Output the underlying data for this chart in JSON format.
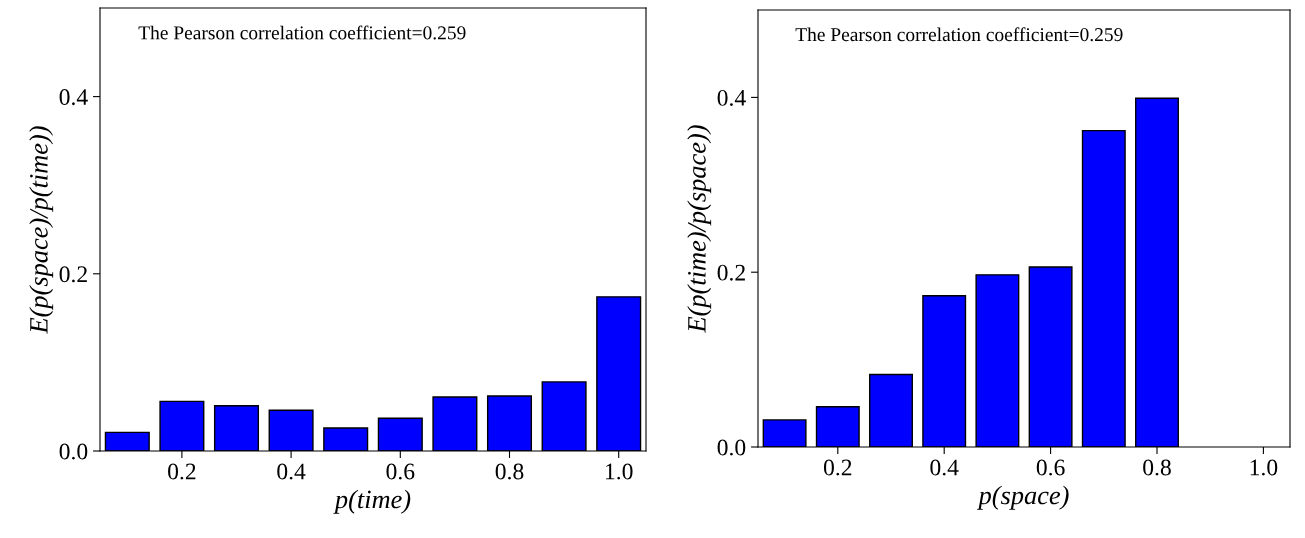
{
  "chart_data": [
    {
      "type": "bar",
      "xlabel": "p(time)",
      "ylabel": "E(p(space)/p(time))",
      "annotations": [
        "The Pearson correlation coefficient=0.259"
      ],
      "x": [
        0.1,
        0.2,
        0.3,
        0.4,
        0.5,
        0.6,
        0.7,
        0.8,
        0.9,
        1.0
      ],
      "values": [
        0.021,
        0.056,
        0.051,
        0.046,
        0.026,
        0.037,
        0.061,
        0.062,
        0.078,
        0.174
      ],
      "color": "#0000ff",
      "xlim": [
        0.05,
        1.05
      ],
      "xticks": [
        {
          "value": 0.2,
          "label": "0.2"
        },
        {
          "value": 0.4,
          "label": "0.4"
        },
        {
          "value": 0.6,
          "label": "0.6"
        },
        {
          "value": 0.8,
          "label": "0.8"
        },
        {
          "value": 1.0,
          "label": "1.0"
        }
      ],
      "ylim": [
        0,
        0.5
      ],
      "yticks": [
        {
          "value": 0,
          "label": "0.0"
        },
        {
          "value": 0.2,
          "label": "0.2"
        },
        {
          "value": 0.4,
          "label": "0.4"
        }
      ],
      "grid": false,
      "legend": false
    },
    {
      "type": "bar",
      "xlabel": "p(space)",
      "ylabel": "E(p(time)/p(space))",
      "annotations": [
        "The Pearson correlation coefficient=0.259"
      ],
      "x": [
        0.1,
        0.2,
        0.3,
        0.4,
        0.5,
        0.6,
        0.7,
        0.8
      ],
      "values": [
        0.031,
        0.046,
        0.083,
        0.173,
        0.197,
        0.206,
        0.362,
        0.399
      ],
      "color": "#0000ff",
      "xlim": [
        0.05,
        1.05
      ],
      "xticks": [
        {
          "value": 0.2,
          "label": "0.2"
        },
        {
          "value": 0.4,
          "label": "0.4"
        },
        {
          "value": 0.6,
          "label": "0.6"
        },
        {
          "value": 0.8,
          "label": "0.8"
        },
        {
          "value": 1.0,
          "label": "1.0"
        }
      ],
      "ylim": [
        0,
        0.5
      ],
      "yticks": [
        {
          "value": 0,
          "label": "0.0"
        },
        {
          "value": 0.2,
          "label": "0.2"
        },
        {
          "value": 0.4,
          "label": "0.4"
        }
      ],
      "grid": false,
      "legend": false
    }
  ]
}
